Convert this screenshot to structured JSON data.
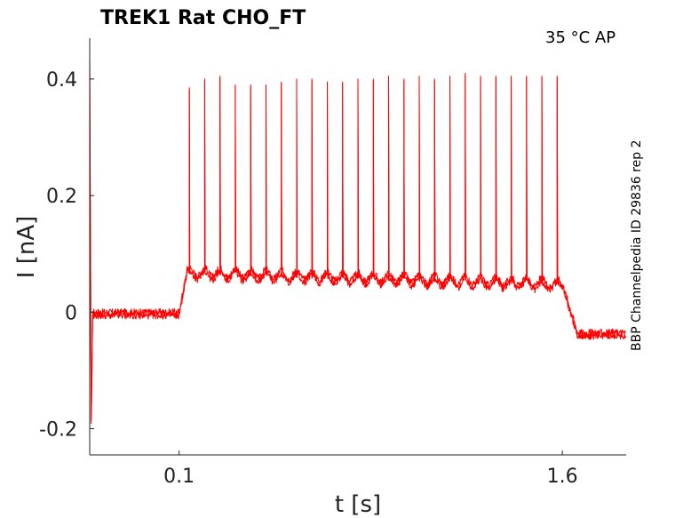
{
  "chart_data": {
    "type": "line",
    "title": "TREK1  Rat  CHO_FT",
    "condition": "35 °C  AP",
    "side_note": "BBP Channelpedia ID 29836 rep 2",
    "xlabel": "t [s]",
    "ylabel": "I [nA]",
    "xlim": [
      -0.25,
      1.85
    ],
    "ylim": [
      -0.245,
      0.47
    ],
    "x_ticks": [
      {
        "value": 0.1,
        "label": "0.1"
      },
      {
        "value": 1.6,
        "label": "1.6"
      }
    ],
    "y_ticks": [
      {
        "value": 0.4,
        "label": "0.4"
      },
      {
        "value": 0.2,
        "label": "0.2"
      },
      {
        "value": 0,
        "label": "0"
      },
      {
        "value": -0.2,
        "label": "-0.2"
      }
    ],
    "grid": false,
    "series_color": "#ff0000",
    "trace": {
      "baseline": 0.0,
      "step_on": 0.1,
      "step_off": 1.6,
      "plateau_start": 0.07,
      "plateau_end": 0.05,
      "final_level": -0.035,
      "initial_transient_min": -0.19,
      "spikes": [
        {
          "t": 0.14,
          "peak": 0.385
        },
        {
          "t": 0.2,
          "peak": 0.4
        },
        {
          "t": 0.26,
          "peak": 0.405
        },
        {
          "t": 0.32,
          "peak": 0.39
        },
        {
          "t": 0.38,
          "peak": 0.39
        },
        {
          "t": 0.44,
          "peak": 0.39
        },
        {
          "t": 0.5,
          "peak": 0.395
        },
        {
          "t": 0.56,
          "peak": 0.4
        },
        {
          "t": 0.62,
          "peak": 0.4
        },
        {
          "t": 0.68,
          "peak": 0.395
        },
        {
          "t": 0.74,
          "peak": 0.395
        },
        {
          "t": 0.8,
          "peak": 0.4
        },
        {
          "t": 0.86,
          "peak": 0.4
        },
        {
          "t": 0.92,
          "peak": 0.405
        },
        {
          "t": 0.98,
          "peak": 0.4
        },
        {
          "t": 1.04,
          "peak": 0.405
        },
        {
          "t": 1.1,
          "peak": 0.4
        },
        {
          "t": 1.16,
          "peak": 0.405
        },
        {
          "t": 1.22,
          "peak": 0.41
        },
        {
          "t": 1.28,
          "peak": 0.405
        },
        {
          "t": 1.34,
          "peak": 0.405
        },
        {
          "t": 1.4,
          "peak": 0.405
        },
        {
          "t": 1.46,
          "peak": 0.405
        },
        {
          "t": 1.52,
          "peak": 0.405
        },
        {
          "t": 1.58,
          "peak": 0.405
        }
      ]
    }
  }
}
